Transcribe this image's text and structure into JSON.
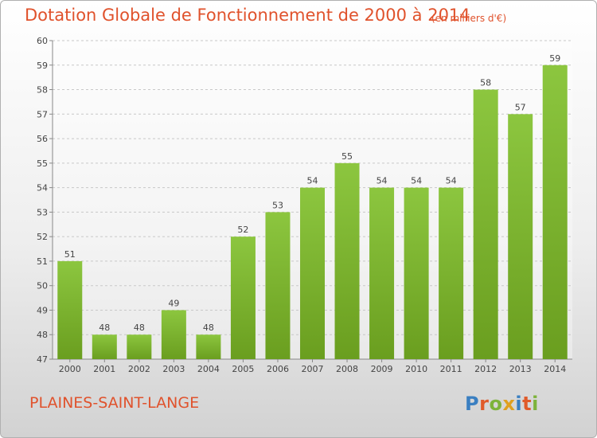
{
  "title": "Dotation Globale de Fonctionnement de 2000 à 2014",
  "subtitle": "(en milliers d'€)",
  "commune": "PLAINES-SAINT-LANGE",
  "logo": {
    "letters": [
      "P",
      "r",
      "o",
      "x",
      "i",
      "t",
      "i"
    ],
    "colors": [
      "#3a7fc1",
      "#e05a2a",
      "#7db33a",
      "#e0a020",
      "#3a7fc1",
      "#e05a2a",
      "#7db33a"
    ]
  },
  "chart_data": {
    "type": "bar",
    "title": "Dotation Globale de Fonctionnement de 2000 à 2014",
    "subtitle": "(en milliers d'€)",
    "xlabel": "",
    "ylabel": "",
    "categories": [
      "2000",
      "2001",
      "2002",
      "2003",
      "2004",
      "2005",
      "2006",
      "2007",
      "2008",
      "2009",
      "2010",
      "2011",
      "2012",
      "2013",
      "2014"
    ],
    "values": [
      51,
      48,
      48,
      49,
      48,
      52,
      53,
      54,
      55,
      54,
      54,
      54,
      58,
      57,
      59
    ],
    "ylim": [
      47,
      60
    ],
    "yticks": [
      47,
      48,
      49,
      50,
      51,
      52,
      53,
      54,
      55,
      56,
      57,
      58,
      59,
      60
    ],
    "grid": true,
    "bar_color": "#8cc63f",
    "bar_color_dark": "#6a9e1f"
  }
}
